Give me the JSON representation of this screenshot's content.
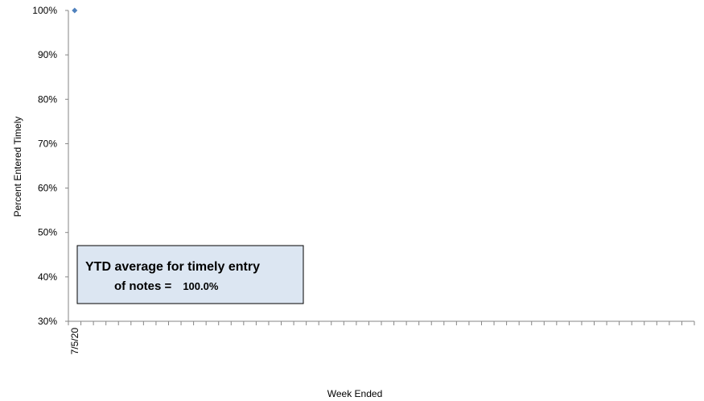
{
  "chart_data": {
    "type": "scatter",
    "title": "",
    "xlabel": "Week Ended",
    "ylabel": "Percent Entered Timely",
    "y_ticks": [
      "30%",
      "40%",
      "50%",
      "60%",
      "70%",
      "80%",
      "90%",
      "100%"
    ],
    "ylim": [
      30,
      100
    ],
    "x_ticks": [
      "7/5/20"
    ],
    "series": [
      {
        "x": [
          "7/5/20"
        ],
        "values": [
          100
        ],
        "color": "#4f81bd"
      }
    ],
    "grid": false,
    "legend": "none",
    "annotation": {
      "line1": "YTD average for timely entry",
      "line2_prefix": "of notes = ",
      "line2_value": "100.0%",
      "fill": "#dce6f2",
      "border": "#000000"
    },
    "axis_color": "#868686"
  }
}
